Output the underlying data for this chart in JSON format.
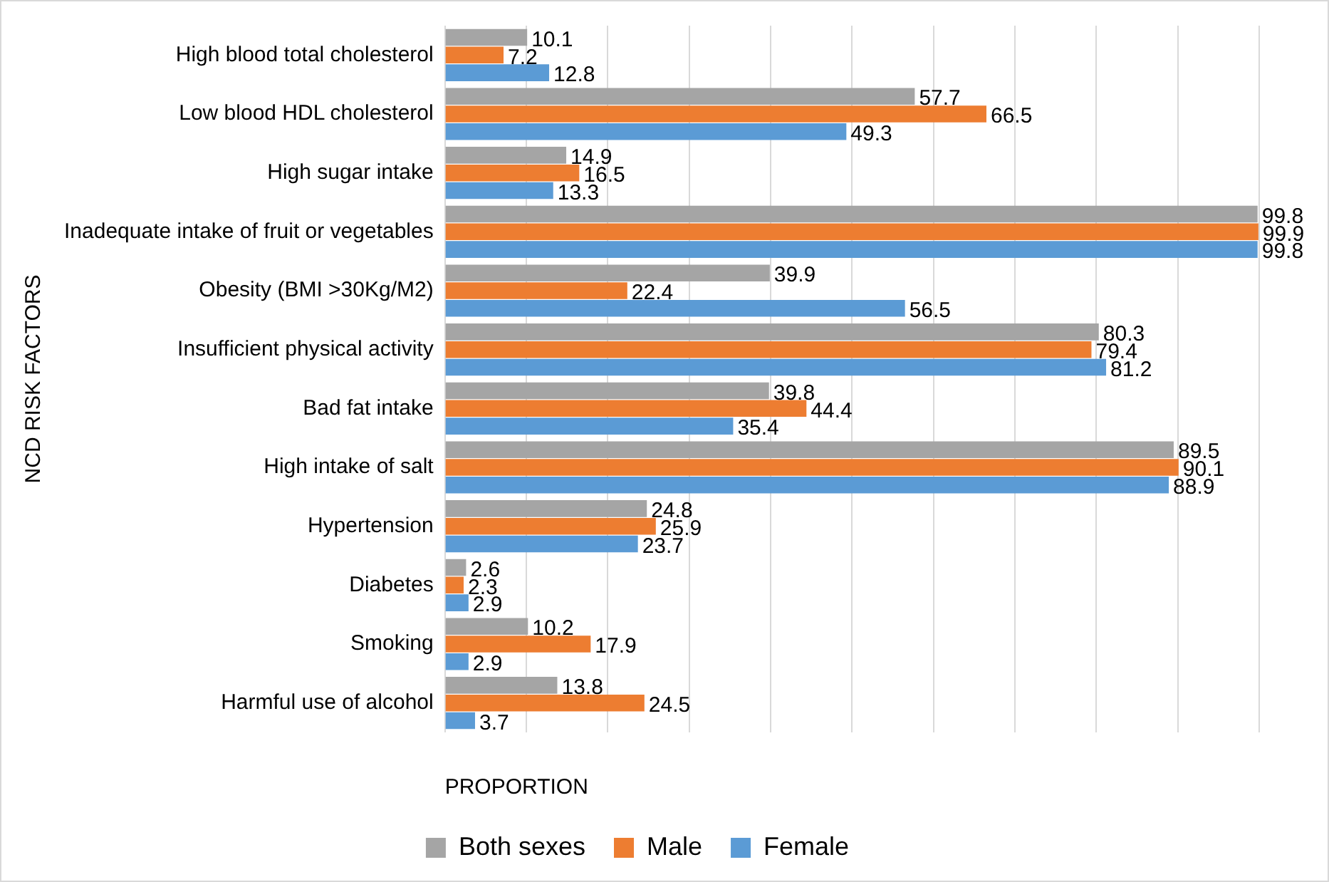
{
  "chart_data": {
    "type": "bar",
    "orientation": "horizontal",
    "xlabel": "PROPORTION",
    "ylabel": "NCD RISK FACTORS",
    "categories": [
      "High blood total cholesterol",
      "Low blood HDL cholesterol",
      "High sugar intake",
      "Inadequate intake of fruit or vegetables",
      "Obesity (BMI >30Kg/M2)",
      "Insufficient physical activity",
      "Bad fat intake",
      "High intake of salt",
      "Hypertension",
      "Diabetes",
      "Smoking",
      "Harmful use of alcohol"
    ],
    "series": [
      {
        "name": "Both sexes",
        "color": "#a5a5a5",
        "values": [
          10.1,
          57.7,
          14.9,
          99.8,
          39.9,
          80.3,
          39.8,
          89.5,
          24.8,
          2.6,
          10.2,
          13.8
        ]
      },
      {
        "name": "Male",
        "color": "#ed7d31",
        "values": [
          7.2,
          66.5,
          16.5,
          99.9,
          22.4,
          79.4,
          44.4,
          90.1,
          25.9,
          2.3,
          17.9,
          24.5
        ]
      },
      {
        "name": "Female",
        "color": "#5b9bd5",
        "values": [
          12.8,
          49.3,
          13.3,
          99.8,
          56.5,
          81.2,
          35.4,
          88.9,
          23.7,
          2.9,
          2.9,
          3.7
        ]
      }
    ],
    "xlim": [
      0,
      100
    ],
    "xticks": [
      {
        "value": 0,
        "label": null
      },
      {
        "value": 10,
        "label": null
      },
      {
        "value": 20,
        "label": null
      },
      {
        "value": 30,
        "label": null
      },
      {
        "value": 40,
        "label": null
      },
      {
        "value": 50,
        "label": null
      },
      {
        "value": 60,
        "label": null
      },
      {
        "value": 70,
        "label": null
      },
      {
        "value": 80,
        "label": null
      },
      {
        "value": 90,
        "label": null
      },
      {
        "value": 100,
        "label": null
      }
    ],
    "tick_labels": "y",
    "grid": "x",
    "legend": "bottom",
    "data_labels": true
  }
}
